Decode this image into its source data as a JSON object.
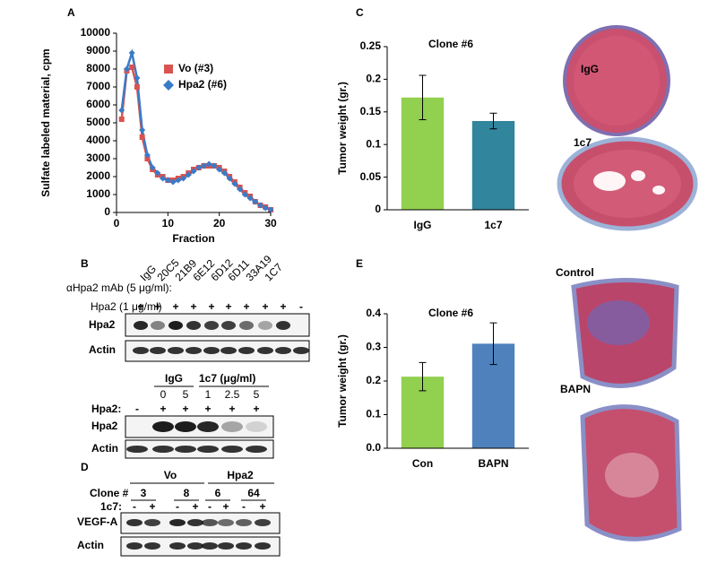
{
  "chart_data": [
    {
      "type": "line",
      "panel": "A",
      "ylabel": "Sulfate labeled material, cpm",
      "xlabel": "Fraction",
      "x": [
        1,
        2,
        3,
        4,
        5,
        6,
        7,
        8,
        9,
        10,
        11,
        12,
        13,
        14,
        15,
        16,
        17,
        18,
        19,
        20,
        21,
        22,
        23,
        24,
        25,
        26,
        27,
        28,
        29,
        30
      ],
      "series": [
        {
          "name": "Vo (#3)",
          "color": "#d9534f",
          "marker": "square",
          "values": [
            5200,
            7900,
            8100,
            7000,
            4200,
            3000,
            2400,
            2100,
            2000,
            1800,
            1800,
            1900,
            2000,
            2200,
            2400,
            2500,
            2600,
            2600,
            2600,
            2500,
            2300,
            2000,
            1700,
            1400,
            1100,
            900,
            600,
            400,
            300,
            150
          ]
        },
        {
          "name": "Hpa2 (#6)",
          "color": "#3a7bc8",
          "marker": "diamond",
          "values": [
            5700,
            8000,
            8900,
            7500,
            4600,
            3200,
            2500,
            2200,
            1900,
            1800,
            1700,
            1800,
            1900,
            2100,
            2300,
            2500,
            2600,
            2700,
            2600,
            2400,
            2200,
            1900,
            1600,
            1300,
            1000,
            800,
            600,
            400,
            250,
            150
          ]
        }
      ],
      "xlim": [
        0,
        30
      ],
      "xticks": [
        0,
        10,
        20,
        30
      ],
      "ylim": [
        0,
        10000
      ],
      "yticks": [
        0,
        1000,
        2000,
        3000,
        4000,
        5000,
        6000,
        7000,
        8000,
        9000,
        10000
      ]
    },
    {
      "type": "bar",
      "panel": "C",
      "title": "Clone #6",
      "ylabel": "Tumor weight (gr.)",
      "categories": [
        "IgG",
        "1c7"
      ],
      "values": [
        0.172,
        0.136
      ],
      "errors": [
        0.034,
        0.012
      ],
      "colors": [
        "#92d050",
        "#31859c"
      ],
      "ylim": [
        0,
        0.25
      ],
      "yticks": [
        0,
        0.05,
        0.1,
        0.15,
        0.2,
        0.25
      ]
    },
    {
      "type": "bar",
      "panel": "E",
      "title": "Clone #6",
      "ylabel": "Tumor weight (gr.)",
      "categories": [
        "Con",
        "BAPN"
      ],
      "values": [
        0.213,
        0.311
      ],
      "errors": [
        0.042,
        0.062
      ],
      "colors": [
        "#92d050",
        "#4f81bd"
      ],
      "ylim": [
        0,
        0.4
      ],
      "yticks": [
        {
          "value": 0,
          "label": "0.0"
        },
        0.1,
        0.2,
        0.3,
        0.4
      ]
    }
  ],
  "blot_b": {
    "panel": "B",
    "antibody_label": "αHpa2 mAb (5 μg/ml):",
    "antibodies": [
      "IgG",
      "20C5",
      "21B9",
      "6E12",
      "6D12",
      "6D11",
      "33A19",
      "1C7"
    ],
    "hpa2_label": "Hpa2 (1 μg/ml)",
    "hpa2_signs": [
      "+",
      "+",
      "+",
      "+",
      "+",
      "+",
      "+",
      "+",
      "+",
      "-"
    ],
    "rows": [
      "Hpa2",
      "Actin"
    ]
  },
  "blot_b2": {
    "groups": [
      "IgG",
      "1c7 (μg/ml)"
    ],
    "doses": [
      0,
      5,
      1,
      2.5,
      5
    ],
    "hpa2_label": "Hpa2:",
    "hpa2_signs": [
      "-",
      "+",
      "+",
      "+",
      "+",
      "+"
    ],
    "rows": [
      "Hpa2",
      "Actin"
    ]
  },
  "blot_d": {
    "panel": "D",
    "groups": [
      "Vo",
      "Hpa2"
    ],
    "clone_label": "Clone #",
    "clones": [
      3,
      8,
      6,
      64
    ],
    "treatment_label": "1c7:",
    "treatment_signs": [
      "-",
      "+",
      "-",
      "+",
      "-",
      "+",
      "-",
      "+"
    ],
    "rows": [
      "VEGF-A",
      "Actin"
    ]
  },
  "histology_c": {
    "labels": [
      "IgG",
      "1c7"
    ]
  },
  "histology_e": {
    "labels": [
      "Control",
      "BAPN"
    ]
  }
}
